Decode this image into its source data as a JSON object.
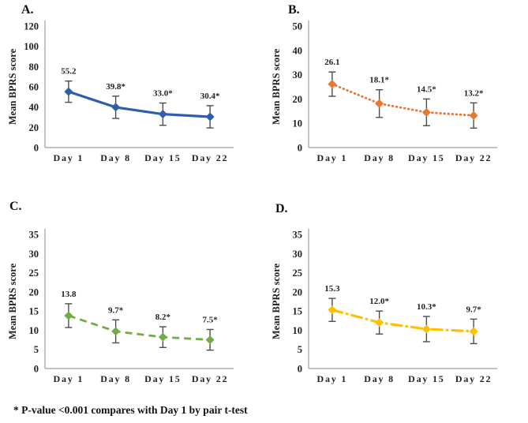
{
  "page": {
    "footnote": "* P-value <0.001 compares with Day 1 by pair t-test"
  },
  "styles": {
    "error_bar_color": "#4D4D4D",
    "axis_color": "#ADADAD",
    "text_color": "#1F1F1F"
  },
  "chart_data": [
    {
      "type": "line",
      "panel_label": "A.",
      "ylabel": "Mean BPRS score",
      "categories": [
        "Day 1",
        "Day 8",
        "Day 15",
        "Day 22"
      ],
      "values": [
        55.2,
        39.8,
        33.0,
        30.4
      ],
      "errors": [
        10.5,
        11,
        11,
        11
      ],
      "point_labels": [
        "55.2",
        "39.8*",
        "33.0*",
        "30.4*"
      ],
      "ylim": [
        0,
        120
      ],
      "ytick_step": 20,
      "line_color": "#2F5FAC",
      "line_style": "solid",
      "grid": "off",
      "legend": "none"
    },
    {
      "type": "line",
      "panel_label": "B.",
      "ylabel": "Mean BPRS score",
      "categories": [
        "Day 1",
        "Day 8",
        "Day 15",
        "Day 22"
      ],
      "values": [
        26.1,
        18.1,
        14.5,
        13.2
      ],
      "errors": [
        5.0,
        5.7,
        5.5,
        5.2
      ],
      "point_labels": [
        "26.1",
        "18.1*",
        "14.5*",
        "13.2*"
      ],
      "ylim": [
        0,
        50
      ],
      "ytick_step": 10,
      "line_color": "#E9772E",
      "line_style": "dotted",
      "grid": "off",
      "legend": "none"
    },
    {
      "type": "line",
      "panel_label": "C.",
      "ylabel": "Mean BPRS score",
      "categories": [
        "Day 1",
        "Day 8",
        "Day 15",
        "Day 22"
      ],
      "values": [
        13.8,
        9.7,
        8.2,
        7.5
      ],
      "errors": [
        3.1,
        3.0,
        2.7,
        2.7
      ],
      "point_labels": [
        "13.8",
        "9.7*",
        "8.2*",
        "7.5*"
      ],
      "ylim": [
        0,
        35
      ],
      "ytick_step": 5,
      "line_color": "#70AD47",
      "line_style": "dashed",
      "grid": "off",
      "legend": "none"
    },
    {
      "type": "line",
      "panel_label": "D.",
      "ylabel": "Mean BPRS score",
      "categories": [
        "Day 1",
        "Day 8",
        "Day 15",
        "Day 22"
      ],
      "values": [
        15.3,
        12.0,
        10.3,
        9.7
      ],
      "errors": [
        3.0,
        3.0,
        3.3,
        3.2
      ],
      "point_labels": [
        "15.3",
        "12.0*",
        "10.3*",
        "9.7*"
      ],
      "ylim": [
        0,
        35
      ],
      "ytick_step": 5,
      "line_color": "#FFC000",
      "line_style": "dashdot",
      "grid": "off",
      "legend": "none"
    }
  ]
}
